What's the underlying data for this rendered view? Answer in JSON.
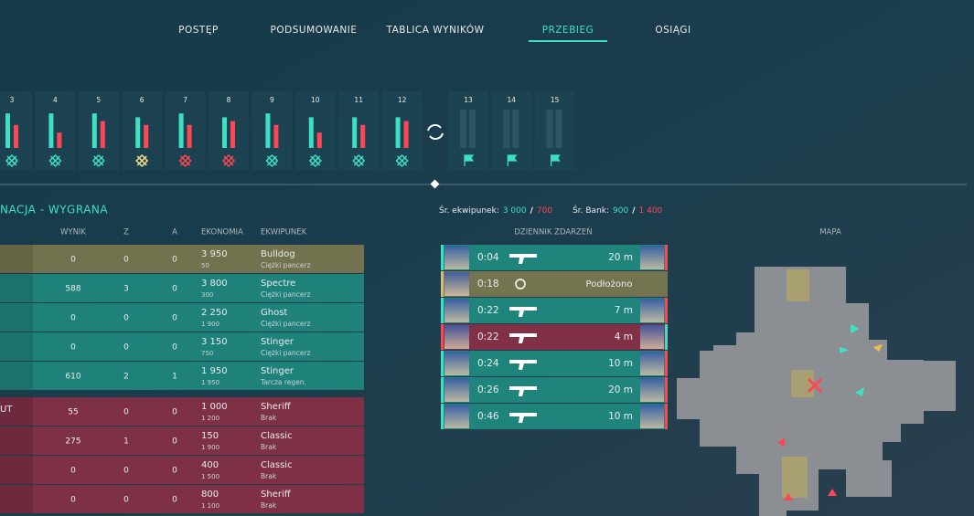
{
  "nav": {
    "tabs": [
      "POSTĘP",
      "PODSUMOWANIE",
      "TABLICA WYNIKÓW",
      "PRZEBIEG",
      "OSIĄGI"
    ],
    "active": 3
  },
  "rounds": [
    {
      "number": "3",
      "bars": [
        9,
        6
      ],
      "icon_color": "#3ee0c4"
    },
    {
      "number": "4",
      "bars": [
        9,
        4
      ],
      "icon_color": "#3ee0c4"
    },
    {
      "number": "5",
      "bars": [
        9,
        7
      ],
      "icon_color": "#3ee0c4"
    },
    {
      "number": "6",
      "bars": [
        8,
        6
      ],
      "icon_color": "#f2e08a"
    },
    {
      "number": "7",
      "bars": [
        9,
        6
      ],
      "icon_color": "#ff4655"
    },
    {
      "number": "8",
      "bars": [
        8,
        7
      ],
      "icon_color": "#ff4655"
    },
    {
      "number": "9",
      "bars": [
        9,
        6
      ],
      "icon_color": "#3ee0c4"
    },
    {
      "number": "10",
      "bars": [
        8,
        4
      ],
      "icon_color": "#3ee0c4"
    },
    {
      "number": "11",
      "bars": [
        8,
        6
      ],
      "icon_color": "#3ee0c4"
    },
    {
      "number": "12",
      "bars": [
        8,
        7
      ],
      "icon_color": "#3ee0c4"
    },
    {
      "number": "13",
      "icon_color": "#3ee0c4"
    },
    {
      "number": "14",
      "icon_color": "#3ee0c4"
    },
    {
      "number": "15",
      "icon_color": "#3ee0c4"
    }
  ],
  "team_header": "NACJA - WYGRANA",
  "columns": [
    "WYNIK",
    "Z",
    "A",
    "EKONOMIA",
    "EKWIPUNEK"
  ],
  "rows": [
    {
      "color": "#7d7850",
      "score": "0",
      "kills": "0",
      "assists": "0",
      "credits": "3 950",
      "spent": "50",
      "weapon": "Bulldog",
      "armor": "Ciężki pancerz"
    },
    {
      "color": "#1f8a80",
      "score": "588",
      "kills": "3",
      "assists": "0",
      "credits": "3 800",
      "spent": "300",
      "weapon": "Spectre",
      "armor": "Ciężki pancerz"
    },
    {
      "color": "#1f8a80",
      "score": "0",
      "kills": "0",
      "assists": "0",
      "credits": "2 250",
      "spent": "1 900",
      "weapon": "Ghost",
      "armor": "Ciężki pancerz"
    },
    {
      "color": "#1f8a80",
      "score": "0",
      "kills": "0",
      "assists": "0",
      "credits": "3 150",
      "spent": "750",
      "weapon": "Stinger",
      "armor": "Ciężki pancerz"
    },
    {
      "color": "#1f8a80",
      "score": "610",
      "kills": "2",
      "assists": "1",
      "credits": "1 950",
      "spent": "1 950",
      "weapon": "Stinger",
      "armor": "Tarcza regen."
    },
    {
      "color": "#8a2f45",
      "name": "UT",
      "score": "55",
      "kills": "0",
      "assists": "0",
      "credits": "1 000",
      "spent": "1 200",
      "weapon": "Sheriff",
      "armor": "Brak"
    },
    {
      "color": "#8a2f45",
      "score": "275",
      "kills": "1",
      "assists": "0",
      "credits": "150",
      "spent": "1 900",
      "weapon": "Classic",
      "armor": "Brak"
    },
    {
      "color": "#8a2f45",
      "score": "0",
      "kills": "0",
      "assists": "0",
      "credits": "400",
      "spent": "1 500",
      "weapon": "Classic",
      "armor": "Brak"
    },
    {
      "color": "#8a2f45",
      "score": "0",
      "kills": "0",
      "assists": "0",
      "credits": "800",
      "spent": "1 100",
      "weapon": "Sheriff",
      "armor": "Brak"
    }
  ],
  "stats": {
    "loadout_label": "Śr. ekwipunek:",
    "loadout": [
      "3 000",
      "700"
    ],
    "separator": "/",
    "bank_label": "Śr. Bank:",
    "bank": [
      "900",
      "1 400"
    ]
  },
  "log": {
    "title": "DZIENNIK ZDARZEŃ",
    "events": [
      {
        "color": "#1f8a80",
        "time": "0:04",
        "distance": "20 m"
      },
      {
        "color": "#7d7850",
        "time": "0:18",
        "text": "Podłożono"
      },
      {
        "color": "#1f8a80",
        "time": "0:22",
        "distance": "7 m"
      },
      {
        "color": "#8a2f45",
        "time": "0:22",
        "distance": "4 m"
      },
      {
        "color": "#1f8a80",
        "time": "0:24",
        "distance": "10 m"
      },
      {
        "color": "#1f8a80",
        "time": "0:26",
        "distance": "20 m"
      },
      {
        "color": "#1f8a80",
        "time": "0:46",
        "distance": "10 m"
      }
    ]
  },
  "map": {
    "title": "MAPA"
  }
}
